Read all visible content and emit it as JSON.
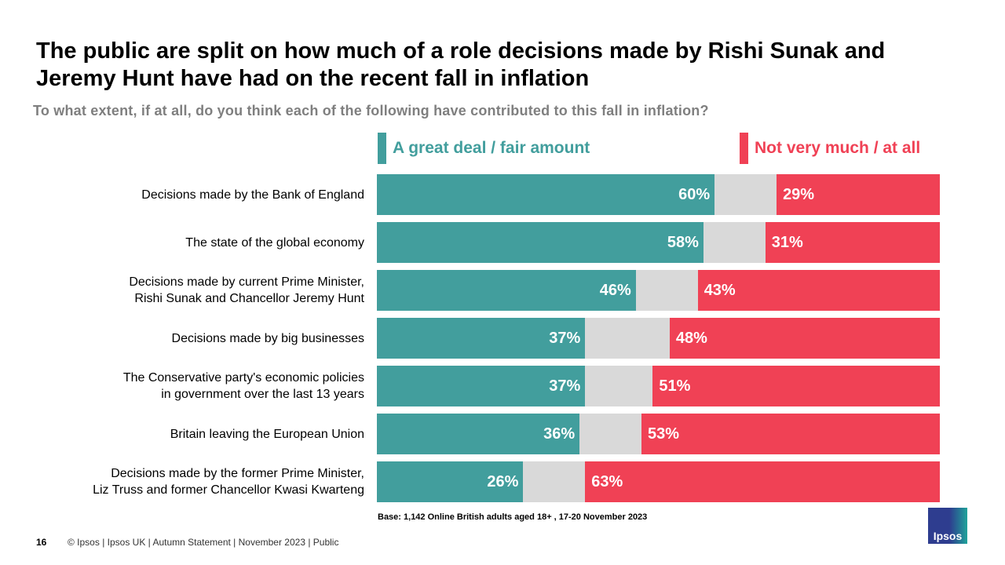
{
  "title": "The public are split on how much of a role decisions made by Rishi Sunak and Jeremy Hunt have had on the recent fall in inflation",
  "subtitle": "To what extent, if at all, do you think each of the following  have contributed to this fall in inflation?",
  "footer": {
    "page": "16",
    "text": "© Ipsos |  Ipsos UK | Autumn Statement | November  2023 | Public",
    "base": "Base: 1,142 Online British adults aged 18+ , 17-20 November 2023",
    "logo": "Ipsos"
  },
  "colors": {
    "agree": "#429E9D",
    "disagree": "#F04155",
    "other": "#D9D9D9"
  },
  "chart_data": {
    "type": "bar",
    "orientation": "horizontal",
    "stacked": true,
    "xlim": [
      0,
      100
    ],
    "legend": [
      "A great deal / fair amount",
      "Not very much / at all"
    ],
    "categories": [
      "Decisions made by the Bank of England",
      "The state of the global economy",
      "Decisions made by current Prime Minister, Rishi Sunak and Chancellor Jeremy Hunt",
      "Decisions made by big businesses",
      "The Conservative party's economic policies in government over the last 13 years",
      "Britain leaving the European Union",
      "Decisions made by the former Prime Minister, Liz Truss and former Chancellor Kwasi Kwarteng"
    ],
    "label_lines": [
      [
        "Decisions made by the Bank of England"
      ],
      [
        "The state of the global economy"
      ],
      [
        "Decisions made by current Prime Minister,",
        "Rishi Sunak and Chancellor Jeremy Hunt"
      ],
      [
        "Decisions made by big businesses"
      ],
      [
        "The Conservative party's economic policies",
        "in government over the last 13 years"
      ],
      [
        "Britain leaving the European Union"
      ],
      [
        "Decisions made by the former Prime Minister,",
        "Liz Truss and former Chancellor Kwasi Kwarteng"
      ]
    ],
    "series": [
      {
        "name": "A great deal / fair amount",
        "values": [
          60,
          58,
          46,
          37,
          37,
          36,
          26
        ]
      },
      {
        "name": "Not very much / at all",
        "values": [
          29,
          31,
          43,
          48,
          51,
          53,
          63
        ]
      }
    ]
  }
}
